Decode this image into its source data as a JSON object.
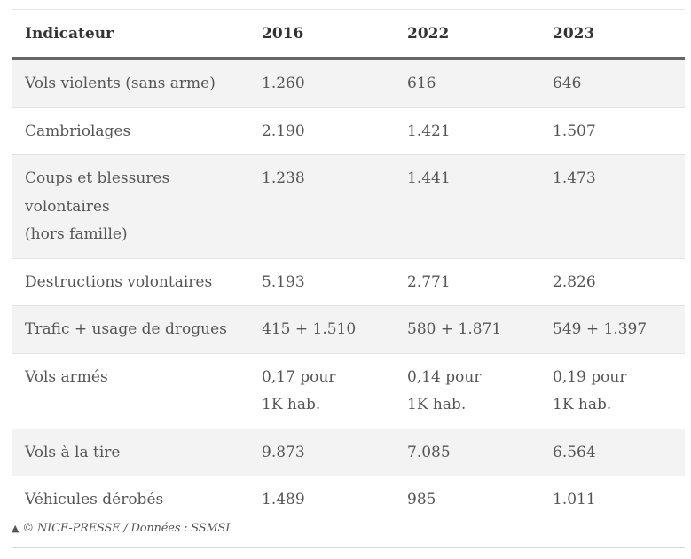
{
  "table": {
    "headers": [
      "Indicateur",
      "2016",
      "2022",
      "2023"
    ],
    "rows": [
      {
        "label_lines": [
          "Vols violents (sans arme)"
        ],
        "v2016": [
          "1.260"
        ],
        "v2022": [
          "616"
        ],
        "v2023": [
          "646"
        ]
      },
      {
        "label_lines": [
          "Cambriolages"
        ],
        "v2016": [
          "2.190"
        ],
        "v2022": [
          "1.421"
        ],
        "v2023": [
          "1.507"
        ]
      },
      {
        "label_lines": [
          "Coups et blessures",
          "volontaires",
          "(hors famille)"
        ],
        "v2016": [
          "1.238"
        ],
        "v2022": [
          "1.441"
        ],
        "v2023": [
          "1.473"
        ]
      },
      {
        "label_lines": [
          "Destructions volontaires"
        ],
        "v2016": [
          "5.193"
        ],
        "v2022": [
          "2.771"
        ],
        "v2023": [
          "2.826"
        ]
      },
      {
        "label_lines": [
          "Trafic + usage de drogues"
        ],
        "v2016": [
          "415 + 1.510"
        ],
        "v2022": [
          "580 + 1.871"
        ],
        "v2023": [
          "549 + 1.397"
        ]
      },
      {
        "label_lines": [
          "Vols armés"
        ],
        "v2016": [
          "0,17 pour",
          "1K hab."
        ],
        "v2022": [
          "0,14 pour",
          "1K hab."
        ],
        "v2023": [
          "0,19 pour",
          "1K hab."
        ]
      },
      {
        "label_lines": [
          "Vols à la tire"
        ],
        "v2016": [
          "9.873"
        ],
        "v2022": [
          "7.085"
        ],
        "v2023": [
          "6.564"
        ]
      },
      {
        "label_lines": [
          "Véhicules dérobés"
        ],
        "v2016": [
          "1.489"
        ],
        "v2022": [
          "985"
        ],
        "v2023": [
          "1.011"
        ]
      }
    ]
  },
  "caption": {
    "icon": "triangle-up-icon",
    "text": "© NICE-PRESSE / Données : SSMSI"
  }
}
